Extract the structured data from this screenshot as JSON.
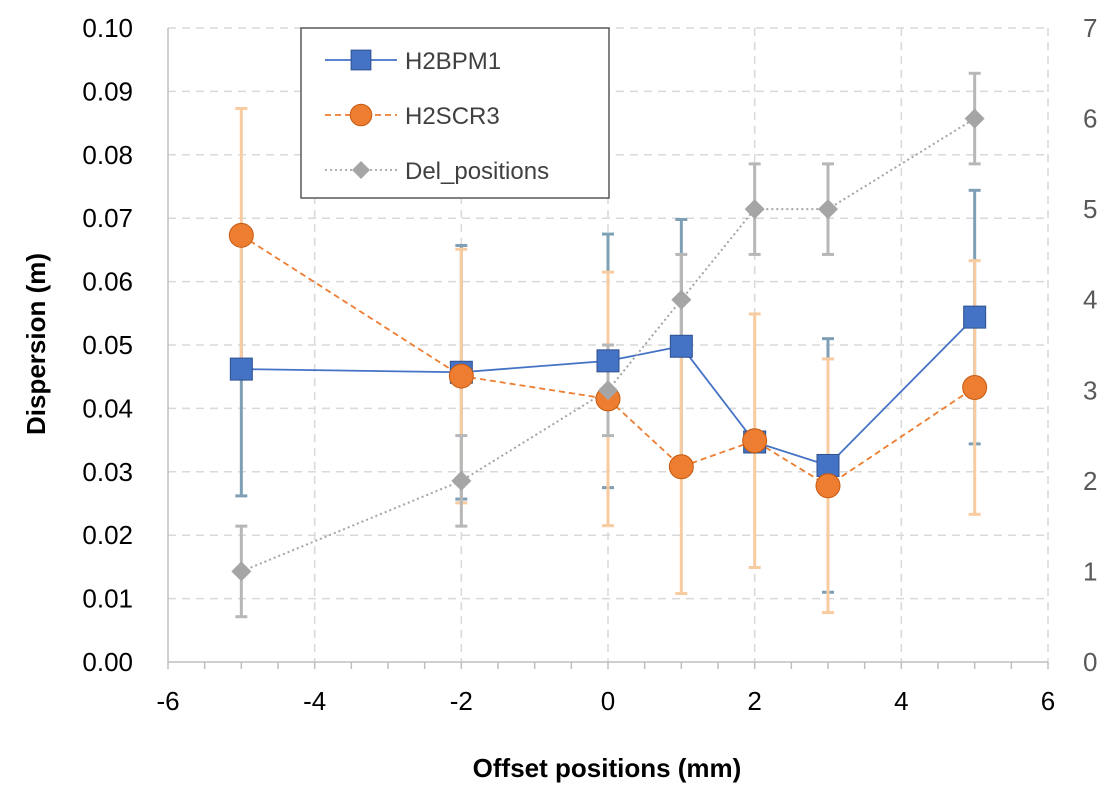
{
  "chart_data": {
    "type": "scatter",
    "xlabel": "Offset positions (mm)",
    "ylabel": "Dispersion (m)",
    "xlim": [
      -6,
      6
    ],
    "ylim": [
      0,
      0.1
    ],
    "y2lim": [
      0,
      7
    ],
    "x_ticks": [
      "-6",
      "-4",
      "-2",
      "0",
      "2",
      "4",
      "6"
    ],
    "y_ticks": [
      "0.00",
      "0.01",
      "0.02",
      "0.03",
      "0.04",
      "0.05",
      "0.06",
      "0.07",
      "0.08",
      "0.09",
      "0.10"
    ],
    "y2_ticks": [
      "0",
      "1",
      "2",
      "3",
      "4",
      "5",
      "6",
      "7"
    ],
    "grid": true,
    "legend_position": "top-left",
    "series": [
      {
        "name": "H2BPM1",
        "axis": "left",
        "color": "#4472C4",
        "marker": "square",
        "line": "solid",
        "x": [
          -5,
          -2,
          0,
          1,
          2,
          3,
          5
        ],
        "y": [
          0.0462,
          0.0457,
          0.0475,
          0.0498,
          0.0347,
          0.031,
          0.0544
        ],
        "error": [
          0.02,
          0.02,
          0.02,
          0.02,
          0.0,
          0.02,
          0.02
        ],
        "error_color": "#7F9FB5"
      },
      {
        "name": "H2SCR3",
        "axis": "left",
        "color": "#ED7D31",
        "marker": "circle",
        "line": "dashed",
        "x": [
          -5,
          -2,
          0,
          1,
          2,
          3,
          5
        ],
        "y": [
          0.0673,
          0.0451,
          0.0415,
          0.0308,
          0.0349,
          0.0278,
          0.0433
        ],
        "error": [
          0.02,
          0.02,
          0.02,
          0.02,
          0.02,
          0.02,
          0.02
        ],
        "error_color": "#F8CBA0"
      },
      {
        "name": "Del_positions",
        "axis": "right",
        "color": "#A5A5A5",
        "marker": "diamond",
        "line": "dotted",
        "x": [
          -5,
          -2,
          0,
          1,
          2,
          3,
          5
        ],
        "y": [
          1,
          2,
          3,
          4,
          5,
          5,
          6
        ],
        "error": [
          0.5,
          0.5,
          0.5,
          0.5,
          0.5,
          0.5,
          0.5
        ],
        "error_color": "#B7B7B7"
      }
    ]
  }
}
